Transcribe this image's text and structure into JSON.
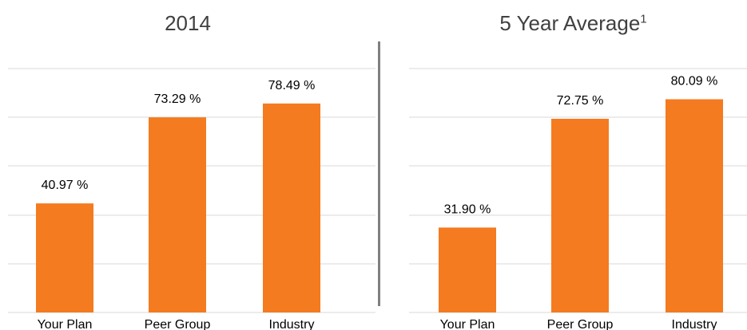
{
  "colors": {
    "bar": "#f47b20",
    "grid": "#d9d9d9",
    "divider": "#7f7f7f"
  },
  "chart_data": [
    {
      "type": "bar",
      "title": "2014",
      "title_sup": "",
      "categories": [
        "Your Plan",
        "Peer Group",
        "Industry"
      ],
      "values": [
        40.97,
        73.29,
        78.49
      ],
      "value_labels": [
        "40.97 %",
        "73.29 %",
        "78.49 %"
      ],
      "ylim": [
        0,
        100
      ],
      "grid": true
    },
    {
      "type": "bar",
      "title": "5 Year Average",
      "title_sup": "1",
      "categories": [
        "Your Plan",
        "Peer Group",
        "Industry"
      ],
      "values": [
        31.9,
        72.75,
        80.09
      ],
      "value_labels": [
        "31.90 %",
        "72.75 %",
        "80.09 %"
      ],
      "ylim": [
        0,
        100
      ],
      "grid": true
    }
  ]
}
